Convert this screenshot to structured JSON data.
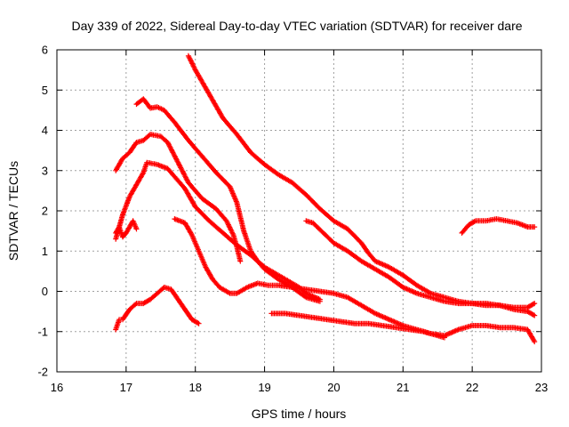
{
  "chart_data": {
    "type": "scatter",
    "title": "Day 339 of 2022, Sidereal Day-to-day VTEC variation (SDTVAR) for receiver dare",
    "xlabel": "GPS time / hours",
    "ylabel": "SDTVAR / TECUs",
    "xlim": [
      16,
      23
    ],
    "ylim": [
      -2,
      6
    ],
    "xticks": [
      "16",
      "17",
      "18",
      "19",
      "20",
      "21",
      "22",
      "23"
    ],
    "yticks": [
      "-2",
      "-1",
      "0",
      "1",
      "2",
      "3",
      "4",
      "5",
      "6"
    ],
    "grid": true,
    "marker": "+",
    "color": "#ff0000",
    "series": [
      {
        "name": "track-1",
        "points": [
          [
            17.9,
            5.85
          ],
          [
            18.0,
            5.5
          ],
          [
            18.2,
            4.9
          ],
          [
            18.4,
            4.3
          ],
          [
            18.6,
            3.9
          ],
          [
            18.8,
            3.45
          ],
          [
            19.0,
            3.15
          ],
          [
            19.2,
            2.9
          ],
          [
            19.4,
            2.7
          ],
          [
            19.6,
            2.4
          ],
          [
            19.8,
            2.05
          ],
          [
            20.0,
            1.75
          ],
          [
            20.2,
            1.55
          ],
          [
            20.4,
            1.2
          ],
          [
            20.5,
            0.95
          ],
          [
            20.6,
            0.75
          ],
          [
            20.8,
            0.6
          ],
          [
            21.0,
            0.4
          ],
          [
            21.2,
            0.15
          ],
          [
            21.4,
            -0.05
          ],
          [
            21.6,
            -0.15
          ],
          [
            21.8,
            -0.25
          ],
          [
            22.0,
            -0.3
          ],
          [
            22.2,
            -0.3
          ],
          [
            22.4,
            -0.35
          ],
          [
            22.6,
            -0.4
          ],
          [
            22.8,
            -0.4
          ],
          [
            22.9,
            -0.3
          ]
        ]
      },
      {
        "name": "track-2",
        "points": [
          [
            17.15,
            4.65
          ],
          [
            17.25,
            4.78
          ],
          [
            17.35,
            4.55
          ],
          [
            17.45,
            4.58
          ],
          [
            17.55,
            4.5
          ],
          [
            17.7,
            4.2
          ],
          [
            17.9,
            3.75
          ],
          [
            18.1,
            3.35
          ],
          [
            18.3,
            2.95
          ],
          [
            18.5,
            2.6
          ],
          [
            18.6,
            2.2
          ],
          [
            18.7,
            1.5
          ],
          [
            18.8,
            1.0
          ],
          [
            18.9,
            0.75
          ],
          [
            19.0,
            0.55
          ],
          [
            19.2,
            0.3
          ],
          [
            19.4,
            0.1
          ],
          [
            19.6,
            -0.15
          ],
          [
            19.8,
            -0.25
          ]
        ]
      },
      {
        "name": "track-3",
        "points": [
          [
            16.85,
            3.0
          ],
          [
            16.95,
            3.3
          ],
          [
            17.05,
            3.45
          ],
          [
            17.15,
            3.7
          ],
          [
            17.25,
            3.75
          ],
          [
            17.35,
            3.9
          ],
          [
            17.5,
            3.85
          ],
          [
            17.6,
            3.7
          ],
          [
            17.75,
            3.2
          ],
          [
            17.9,
            2.7
          ],
          [
            18.1,
            2.3
          ],
          [
            18.3,
            2.05
          ],
          [
            18.45,
            1.75
          ],
          [
            18.55,
            1.4
          ],
          [
            18.6,
            1.1
          ],
          [
            18.65,
            0.75
          ]
        ]
      },
      {
        "name": "track-4",
        "points": [
          [
            16.85,
            1.3
          ],
          [
            16.95,
            1.9
          ],
          [
            17.05,
            2.35
          ],
          [
            17.15,
            2.65
          ],
          [
            17.25,
            2.95
          ],
          [
            17.3,
            3.2
          ],
          [
            17.45,
            3.15
          ],
          [
            17.6,
            3.05
          ],
          [
            17.7,
            2.85
          ],
          [
            17.85,
            2.55
          ],
          [
            18.0,
            2.1
          ],
          [
            18.2,
            1.75
          ],
          [
            18.4,
            1.45
          ],
          [
            18.6,
            1.15
          ],
          [
            18.8,
            0.9
          ],
          [
            19.0,
            0.6
          ],
          [
            19.2,
            0.4
          ],
          [
            19.35,
            0.25
          ],
          [
            19.5,
            0.1
          ],
          [
            19.6,
            -0.05
          ],
          [
            19.8,
            -0.2
          ]
        ]
      },
      {
        "name": "track-5",
        "points": [
          [
            16.85,
            1.45
          ],
          [
            16.9,
            1.6
          ],
          [
            16.95,
            1.35
          ],
          [
            17.0,
            1.45
          ],
          [
            17.05,
            1.6
          ],
          [
            17.1,
            1.75
          ],
          [
            17.15,
            1.55
          ]
        ]
      },
      {
        "name": "track-6",
        "points": [
          [
            17.7,
            1.8
          ],
          [
            17.85,
            1.7
          ],
          [
            17.95,
            1.4
          ],
          [
            18.05,
            1.0
          ],
          [
            18.15,
            0.6
          ],
          [
            18.25,
            0.3
          ],
          [
            18.35,
            0.1
          ],
          [
            18.5,
            -0.05
          ],
          [
            18.6,
            -0.05
          ],
          [
            18.75,
            0.1
          ],
          [
            18.9,
            0.2
          ],
          [
            19.05,
            0.15
          ],
          [
            19.2,
            0.15
          ],
          [
            19.4,
            0.1
          ],
          [
            19.6,
            0.05
          ],
          [
            19.8,
            0.0
          ],
          [
            20.0,
            -0.05
          ],
          [
            20.2,
            -0.15
          ],
          [
            20.4,
            -0.35
          ],
          [
            20.6,
            -0.55
          ],
          [
            20.8,
            -0.7
          ],
          [
            21.0,
            -0.85
          ],
          [
            21.2,
            -0.95
          ],
          [
            21.4,
            -1.05
          ],
          [
            21.6,
            -1.1
          ],
          [
            21.8,
            -0.95
          ],
          [
            22.0,
            -0.85
          ],
          [
            22.2,
            -0.85
          ],
          [
            22.4,
            -0.9
          ],
          [
            22.6,
            -0.9
          ],
          [
            22.8,
            -0.95
          ],
          [
            22.9,
            -1.25
          ]
        ]
      },
      {
        "name": "track-7",
        "points": [
          [
            19.6,
            1.75
          ],
          [
            19.7,
            1.7
          ],
          [
            19.85,
            1.45
          ],
          [
            20.0,
            1.2
          ],
          [
            20.2,
            1.0
          ],
          [
            20.4,
            0.75
          ],
          [
            20.6,
            0.55
          ],
          [
            20.8,
            0.35
          ],
          [
            21.0,
            0.1
          ],
          [
            21.2,
            -0.05
          ],
          [
            21.4,
            -0.15
          ],
          [
            21.6,
            -0.25
          ],
          [
            21.8,
            -0.3
          ],
          [
            22.0,
            -0.3
          ],
          [
            22.2,
            -0.35
          ],
          [
            22.4,
            -0.35
          ],
          [
            22.6,
            -0.45
          ],
          [
            22.8,
            -0.5
          ],
          [
            22.9,
            -0.6
          ]
        ]
      },
      {
        "name": "track-8",
        "points": [
          [
            19.1,
            -0.55
          ],
          [
            19.3,
            -0.55
          ],
          [
            19.5,
            -0.6
          ],
          [
            19.7,
            -0.65
          ],
          [
            19.9,
            -0.7
          ],
          [
            20.1,
            -0.75
          ],
          [
            20.3,
            -0.8
          ],
          [
            20.5,
            -0.8
          ],
          [
            20.7,
            -0.85
          ],
          [
            20.9,
            -0.9
          ],
          [
            21.1,
            -0.95
          ],
          [
            21.3,
            -1.0
          ],
          [
            21.5,
            -1.1
          ],
          [
            21.6,
            -1.15
          ]
        ]
      },
      {
        "name": "track-9",
        "points": [
          [
            16.85,
            -0.95
          ],
          [
            16.9,
            -0.7
          ],
          [
            16.95,
            -0.7
          ],
          [
            17.05,
            -0.45
          ],
          [
            17.15,
            -0.3
          ],
          [
            17.25,
            -0.3
          ],
          [
            17.35,
            -0.2
          ],
          [
            17.45,
            -0.05
          ],
          [
            17.55,
            0.1
          ],
          [
            17.65,
            0.05
          ],
          [
            17.75,
            -0.2
          ],
          [
            17.85,
            -0.45
          ],
          [
            17.95,
            -0.7
          ],
          [
            18.05,
            -0.8
          ]
        ]
      },
      {
        "name": "track-10",
        "points": [
          [
            21.85,
            1.45
          ],
          [
            21.95,
            1.65
          ],
          [
            22.05,
            1.75
          ],
          [
            22.2,
            1.75
          ],
          [
            22.35,
            1.8
          ],
          [
            22.5,
            1.75
          ],
          [
            22.65,
            1.7
          ],
          [
            22.8,
            1.6
          ],
          [
            22.9,
            1.6
          ]
        ]
      }
    ]
  }
}
